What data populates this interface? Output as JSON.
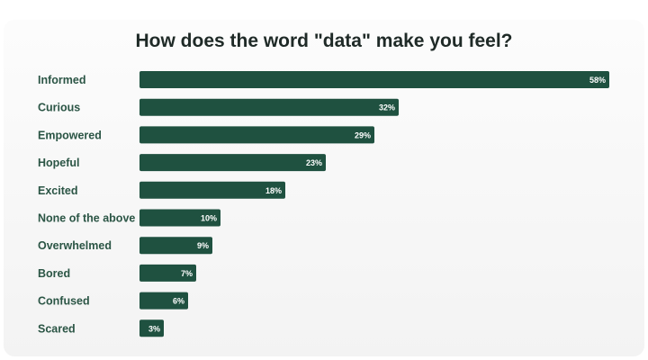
{
  "colors": {
    "bar": "#1f5140",
    "label": "#2b5545",
    "title": "#1f2a27"
  },
  "chart_data": {
    "type": "bar",
    "orientation": "horizontal",
    "title": "How does the word \"data\" make you feel?",
    "categories": [
      "Informed",
      "Curious",
      "Empowered",
      "Hopeful",
      "Excited",
      "None of the above",
      "Overwhelmed",
      "Bored",
      "Confused",
      "Scared"
    ],
    "values": [
      58,
      32,
      29,
      23,
      18,
      10,
      9,
      7,
      6,
      3
    ],
    "value_labels": [
      "58%",
      "32%",
      "29%",
      "23%",
      "18%",
      "10%",
      "9%",
      "7%",
      "6%",
      "3%"
    ],
    "unit": "%",
    "xlim": [
      0,
      58
    ],
    "grid": false,
    "legend": "none"
  }
}
